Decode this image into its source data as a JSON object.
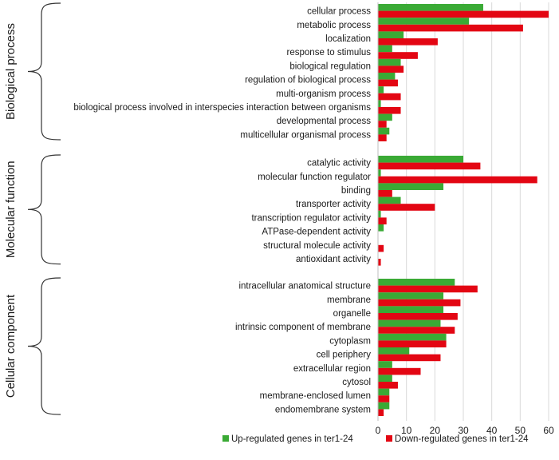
{
  "chart_data": {
    "type": "bar",
    "orientation": "horizontal",
    "xlim": [
      0,
      60
    ],
    "xticks": [
      "0",
      "10",
      "20",
      "30",
      "40",
      "50",
      "60"
    ],
    "grid": true,
    "legend_position": "bottom",
    "series": [
      {
        "name": "Up-regulated genes in ter1-24",
        "color": "#3aaa35"
      },
      {
        "name": "Down-regulated genes in ter1-24",
        "color": "#e30613"
      }
    ],
    "groups": [
      {
        "name": "Biological process",
        "categories": [
          {
            "label": "cellular process",
            "up": 37,
            "down": 60
          },
          {
            "label": "metabolic process",
            "up": 32,
            "down": 51
          },
          {
            "label": "localization",
            "up": 9,
            "down": 21
          },
          {
            "label": "response to stimulus",
            "up": 5,
            "down": 14
          },
          {
            "label": "biological regulation",
            "up": 8,
            "down": 9
          },
          {
            "label": "regulation of biological process",
            "up": 6,
            "down": 7
          },
          {
            "label": "multi-organism process",
            "up": 2,
            "down": 8
          },
          {
            "label": "biological process involved in interspecies interaction between organisms",
            "up": 1,
            "down": 8
          },
          {
            "label": "developmental process",
            "up": 5,
            "down": 3
          },
          {
            "label": "multicellular organismal process",
            "up": 4,
            "down": 3
          }
        ]
      },
      {
        "name": "Molecular function",
        "categories": [
          {
            "label": "catalytic activity",
            "up": 30,
            "down": 36
          },
          {
            "label": "molecular function regulator",
            "up": 1,
            "down": 56
          },
          {
            "label": "binding",
            "up": 23,
            "down": 5
          },
          {
            "label": "transporter activity",
            "up": 8,
            "down": 20
          },
          {
            "label": "transcription regulator activity",
            "up": 1,
            "down": 3
          },
          {
            "label": "ATPase-dependent activity",
            "up": 2,
            "down": 0
          },
          {
            "label": "structural molecule activity",
            "up": 0,
            "down": 2
          },
          {
            "label": "antioxidant activity",
            "up": 0,
            "down": 1
          }
        ]
      },
      {
        "name": "Cellular component",
        "categories": [
          {
            "label": "intracellular anatomical structure",
            "up": 27,
            "down": 35
          },
          {
            "label": "membrane",
            "up": 23,
            "down": 29
          },
          {
            "label": "organelle",
            "up": 23,
            "down": 28
          },
          {
            "label": "intrinsic component of membrane",
            "up": 22,
            "down": 27
          },
          {
            "label": "cytoplasm",
            "up": 24,
            "down": 24
          },
          {
            "label": "cell periphery",
            "up": 11,
            "down": 22
          },
          {
            "label": "extracellular region",
            "up": 5,
            "down": 15
          },
          {
            "label": "cytosol",
            "up": 5,
            "down": 7
          },
          {
            "label": "membrane-enclosed lumen",
            "up": 4,
            "down": 4
          },
          {
            "label": "endomembrane system",
            "up": 4,
            "down": 2
          }
        ]
      }
    ]
  }
}
